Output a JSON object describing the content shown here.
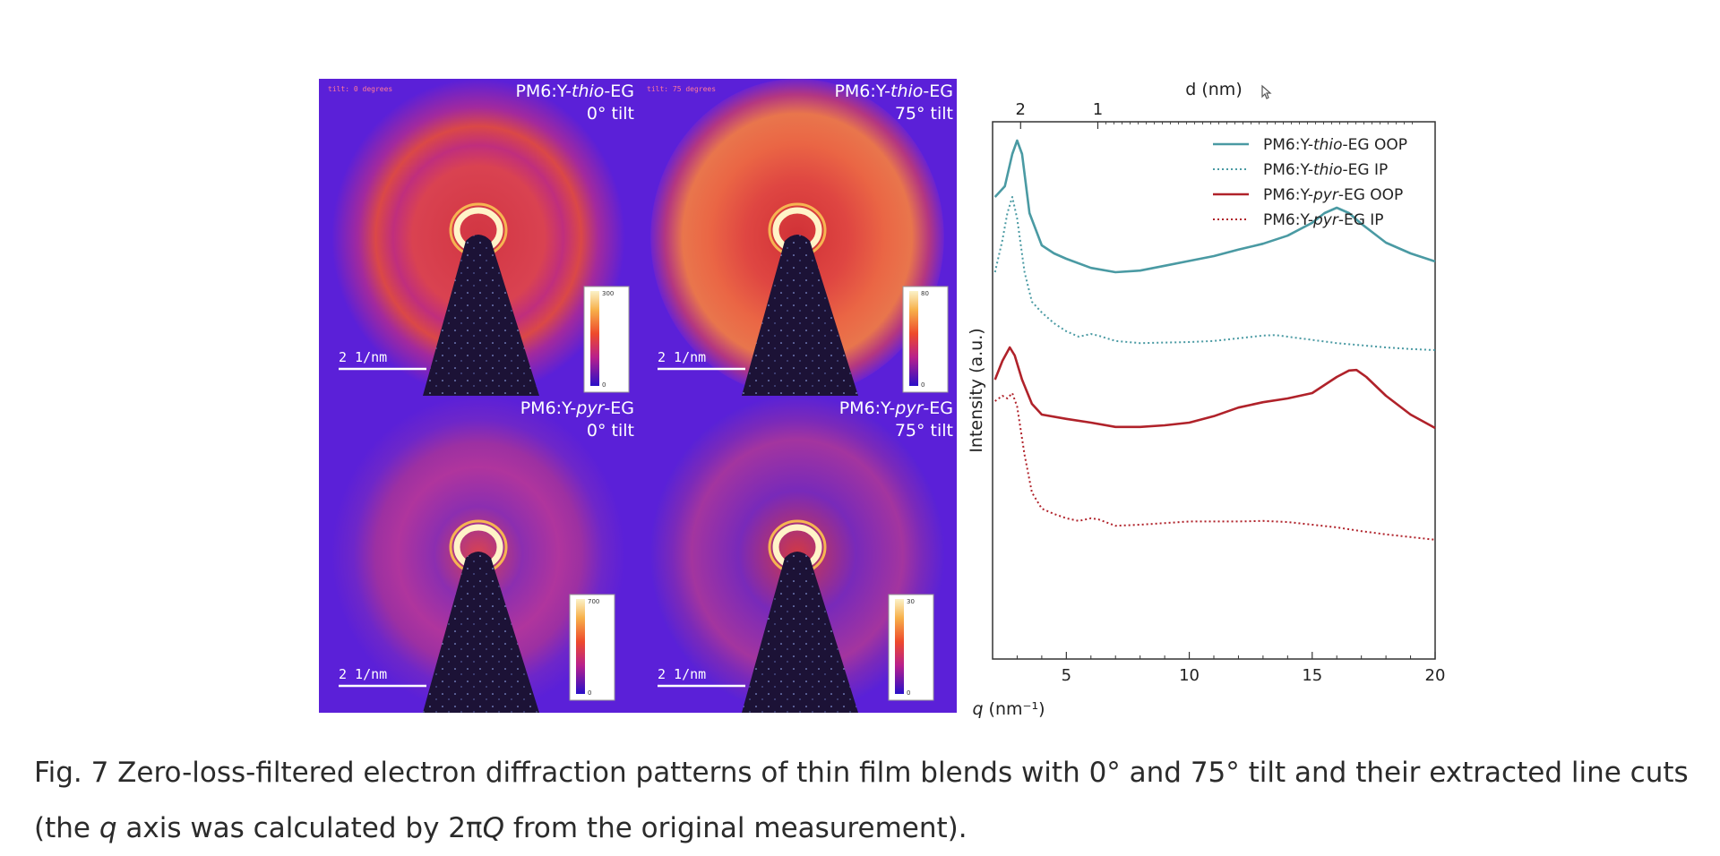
{
  "panels": [
    {
      "title_prefix": "PM6:Y-",
      "title_italic": "thio",
      "title_suffix": "-EG",
      "tilt": "0° tilt",
      "tilt_note": "tilt: 0 degrees",
      "scalebar": "2 1/nm",
      "colorbar_max": "300",
      "colorbar_min": "0",
      "ring": "red"
    },
    {
      "title_prefix": "PM6:Y-",
      "title_italic": "thio",
      "title_suffix": "-EG",
      "tilt": "75° tilt",
      "tilt_note": "tilt: 75 degrees",
      "scalebar": "2 1/nm",
      "colorbar_max": "80",
      "colorbar_min": "0",
      "ring": "orange"
    },
    {
      "title_prefix": "PM6:Y-",
      "title_italic": "pyr",
      "title_suffix": "-EG",
      "tilt": "0° tilt",
      "tilt_note": "",
      "scalebar": "2 1/nm",
      "colorbar_max": "700",
      "colorbar_min": "0",
      "ring": "violet"
    },
    {
      "title_prefix": "PM6:Y-",
      "title_italic": "pyr",
      "title_suffix": "-EG",
      "tilt": "75° tilt",
      "tilt_note": "",
      "scalebar": "2 1/nm",
      "colorbar_max": "30",
      "colorbar_min": "0",
      "ring": "faint"
    }
  ],
  "colors": {
    "series_thio": "#4a9aa3",
    "series_pyr": "#b0222a",
    "panel_bg": "#5b20d8"
  },
  "chart_data": {
    "type": "line",
    "xlabel_italic": "q",
    "xlabel_unit": " (nm⁻¹)",
    "ylabel": "Intensity (a.u.)",
    "top_axis_label": "d (nm)",
    "top_ticks": [
      {
        "label": "2",
        "q": 3.14
      },
      {
        "label": "1",
        "q": 6.28
      }
    ],
    "xlim": [
      2,
      20
    ],
    "xticks": [
      5,
      10,
      15,
      20
    ],
    "legend_position": "top-right",
    "legend": [
      {
        "prefix": "PM6:Y-",
        "italic": "thio",
        "suffix": "-EG OOP",
        "style": "solid",
        "series": 0
      },
      {
        "prefix": "PM6:Y-",
        "italic": "thio",
        "suffix": "-EG IP",
        "style": "dotted",
        "series": 1
      },
      {
        "prefix": "PM6:Y-",
        "italic": "pyr",
        "suffix": "-EG OOP",
        "style": "solid",
        "series": 2
      },
      {
        "prefix": "PM6:Y-",
        "italic": "pyr",
        "suffix": "-EG IP",
        "style": "dotted",
        "series": 3
      }
    ],
    "series": [
      {
        "color": "#4a9aa3",
        "style": "solid",
        "points": [
          [
            2.1,
            0.86
          ],
          [
            2.5,
            0.88
          ],
          [
            2.8,
            0.94
          ],
          [
            3.0,
            0.965
          ],
          [
            3.2,
            0.94
          ],
          [
            3.5,
            0.83
          ],
          [
            4.0,
            0.77
          ],
          [
            4.5,
            0.755
          ],
          [
            5,
            0.745
          ],
          [
            6,
            0.728
          ],
          [
            7,
            0.72
          ],
          [
            8,
            0.723
          ],
          [
            9,
            0.732
          ],
          [
            10,
            0.741
          ],
          [
            11,
            0.75
          ],
          [
            12,
            0.762
          ],
          [
            13,
            0.773
          ],
          [
            14,
            0.788
          ],
          [
            15,
            0.812
          ],
          [
            15.5,
            0.83
          ],
          [
            16,
            0.84
          ],
          [
            16.5,
            0.83
          ],
          [
            17,
            0.81
          ],
          [
            18,
            0.775
          ],
          [
            19,
            0.755
          ],
          [
            20,
            0.74
          ]
        ]
      },
      {
        "color": "#4a9aa3",
        "style": "dotted",
        "points": [
          [
            2.1,
            0.72
          ],
          [
            2.4,
            0.78
          ],
          [
            2.6,
            0.83
          ],
          [
            2.8,
            0.86
          ],
          [
            3.0,
            0.82
          ],
          [
            3.3,
            0.72
          ],
          [
            3.6,
            0.665
          ],
          [
            4.0,
            0.645
          ],
          [
            4.5,
            0.625
          ],
          [
            5,
            0.61
          ],
          [
            5.5,
            0.6
          ],
          [
            6,
            0.605
          ],
          [
            6.3,
            0.602
          ],
          [
            7,
            0.592
          ],
          [
            8,
            0.588
          ],
          [
            9,
            0.589
          ],
          [
            10,
            0.59
          ],
          [
            11,
            0.592
          ],
          [
            12,
            0.597
          ],
          [
            13,
            0.602
          ],
          [
            13.5,
            0.603
          ],
          [
            14,
            0.6
          ],
          [
            15,
            0.594
          ],
          [
            16,
            0.588
          ],
          [
            17,
            0.584
          ],
          [
            18,
            0.58
          ],
          [
            19,
            0.577
          ],
          [
            20,
            0.575
          ]
        ]
      },
      {
        "color": "#b0222a",
        "style": "solid",
        "points": [
          [
            2.1,
            0.52
          ],
          [
            2.4,
            0.555
          ],
          [
            2.7,
            0.58
          ],
          [
            2.9,
            0.565
          ],
          [
            3.2,
            0.52
          ],
          [
            3.6,
            0.475
          ],
          [
            4.0,
            0.455
          ],
          [
            5,
            0.447
          ],
          [
            6,
            0.44
          ],
          [
            7,
            0.432
          ],
          [
            8,
            0.432
          ],
          [
            9,
            0.435
          ],
          [
            10,
            0.44
          ],
          [
            11,
            0.452
          ],
          [
            12,
            0.468
          ],
          [
            13,
            0.478
          ],
          [
            14,
            0.485
          ],
          [
            15,
            0.495
          ],
          [
            15.5,
            0.51
          ],
          [
            16,
            0.525
          ],
          [
            16.5,
            0.537
          ],
          [
            16.8,
            0.538
          ],
          [
            17.2,
            0.525
          ],
          [
            18,
            0.49
          ],
          [
            19,
            0.455
          ],
          [
            20,
            0.43
          ]
        ]
      },
      {
        "color": "#b0222a",
        "style": "dotted",
        "points": [
          [
            2.1,
            0.48
          ],
          [
            2.4,
            0.49
          ],
          [
            2.6,
            0.485
          ],
          [
            2.8,
            0.495
          ],
          [
            3.0,
            0.47
          ],
          [
            3.3,
            0.38
          ],
          [
            3.6,
            0.31
          ],
          [
            4.0,
            0.28
          ],
          [
            4.5,
            0.27
          ],
          [
            5,
            0.262
          ],
          [
            5.5,
            0.257
          ],
          [
            6,
            0.262
          ],
          [
            6.3,
            0.26
          ],
          [
            7,
            0.248
          ],
          [
            8,
            0.25
          ],
          [
            9,
            0.253
          ],
          [
            10,
            0.256
          ],
          [
            11,
            0.256
          ],
          [
            12,
            0.256
          ],
          [
            13,
            0.257
          ],
          [
            14,
            0.255
          ],
          [
            15,
            0.25
          ],
          [
            16,
            0.245
          ],
          [
            17,
            0.238
          ],
          [
            18,
            0.232
          ],
          [
            19,
            0.227
          ],
          [
            20,
            0.222
          ]
        ]
      }
    ]
  },
  "caption": {
    "part1": "Fig. 7 Zero-loss-filtered electron diffraction patterns of thin film blends with 0° and 75° tilt and their extracted line cuts (the ",
    "italic1": "q",
    "part2": " axis was calculated by 2π",
    "italic2": "Q",
    "part3": " from the original measurement)."
  }
}
